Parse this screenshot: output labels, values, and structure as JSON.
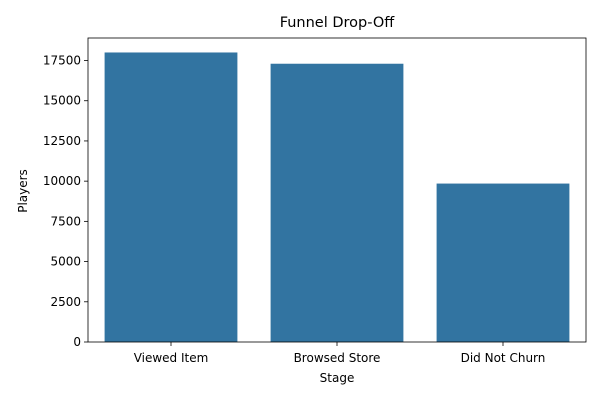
{
  "chart_data": {
    "type": "bar",
    "title": "Funnel Drop-Off",
    "xlabel": "Stage",
    "ylabel": "Players",
    "categories": [
      "Viewed Item",
      "Browsed Store",
      "Did Not Churn"
    ],
    "values": [
      18000,
      17300,
      9850
    ],
    "ylim": [
      0,
      18900
    ],
    "yticks": [
      0,
      2500,
      5000,
      7500,
      10000,
      12500,
      15000,
      17500
    ],
    "grid": false,
    "legend": "none",
    "bar_color": "#3274a1"
  }
}
